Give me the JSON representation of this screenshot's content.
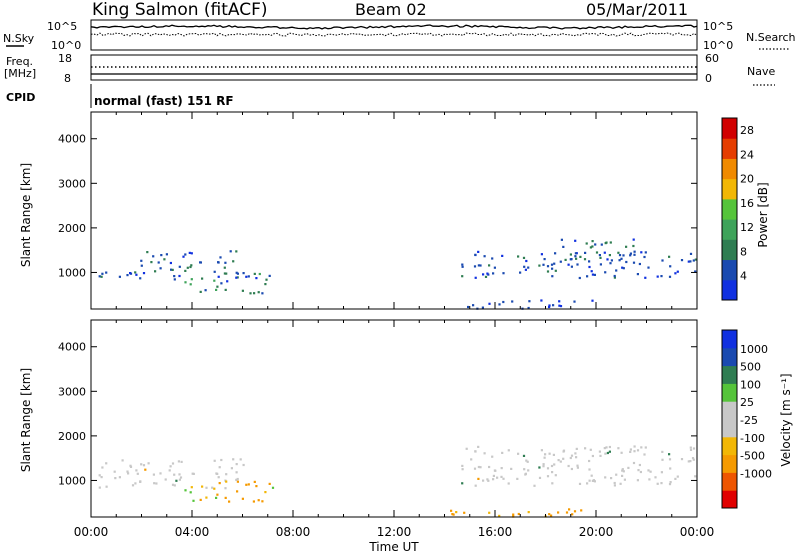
{
  "header": {
    "station": "King Salmon (fitACF)",
    "beam": "Beam 02",
    "date": "05/Mar/2011"
  },
  "top_panels": {
    "nsky_label": "N.Sky",
    "nsky_ticks": [
      "10^5",
      "10^0"
    ],
    "nsearch_label": "N.Search",
    "nsearch_ticks": [
      "10^5",
      "10^0"
    ],
    "freq_label": "Freq.",
    "freq_unit": "[MHz]",
    "freq_ticks": [
      "18",
      "8"
    ],
    "nave_label": "Nave",
    "nave_ticks": [
      "60",
      "0"
    ],
    "cpid_label": "CPID",
    "cpid_text": "normal (fast) 151 RF"
  },
  "colors": {
    "power_scale": [
      "#1030e0",
      "#1a4ab0",
      "#2f7d52",
      "#3ea35a",
      "#55c43a",
      "#f2b705",
      "#f08a00",
      "#e53d00",
      "#d10000"
    ],
    "velocity_scale": [
      "#e00000",
      "#ee5500",
      "#f59a00",
      "#f2b705",
      "#c8c8c8",
      "#c8c8c8",
      "#55c43a",
      "#2f7d52",
      "#1a4ab0",
      "#1030e0"
    ],
    "ground_scatter": "#c8c8c8"
  },
  "chart_data": [
    {
      "type": "heatmap",
      "name": "power",
      "xlabel": "",
      "ylabel": "Slant Range [km]",
      "x_ticks": [
        "00:00",
        "04:00",
        "08:00",
        "12:00",
        "16:00",
        "20:00",
        "00:00"
      ],
      "xlim": [
        0,
        24
      ],
      "ylim": [
        180,
        4600
      ],
      "y_ticks": [
        1000,
        2000,
        3000,
        4000
      ],
      "colorbar": {
        "label": "Power [dB]",
        "ticks": [
          4,
          8,
          12,
          16,
          20,
          24,
          28
        ],
        "range": [
          0,
          30
        ]
      },
      "regions": [
        {
          "t0": 0.3,
          "t1": 6.0,
          "r0": 850,
          "r1": 1050,
          "level": 6
        },
        {
          "t0": 1.5,
          "t1": 5.8,
          "r0": 1000,
          "r1": 1500,
          "level": 8
        },
        {
          "t0": 3.6,
          "t1": 7.2,
          "r0": 550,
          "r1": 1000,
          "level": 10
        },
        {
          "t0": 14.5,
          "t1": 24.0,
          "r0": 900,
          "r1": 1500,
          "level": 6
        },
        {
          "t0": 18.5,
          "t1": 21.5,
          "r0": 1200,
          "r1": 1800,
          "level": 8
        },
        {
          "t0": 14.0,
          "t1": 20.0,
          "r0": 200,
          "r1": 400,
          "level": 4
        }
      ]
    },
    {
      "type": "heatmap",
      "name": "velocity",
      "xlabel": "Time UT",
      "ylabel": "Slant Range [km]",
      "x_ticks": [
        "00:00",
        "04:00",
        "08:00",
        "12:00",
        "16:00",
        "20:00",
        "00:00"
      ],
      "xlim": [
        0,
        24
      ],
      "ylim": [
        180,
        4600
      ],
      "y_ticks": [
        1000,
        2000,
        3000,
        4000
      ],
      "colorbar": {
        "label": "Velocity [m s⁻¹]",
        "ticks": [
          "1000",
          "500",
          "100",
          "25",
          "-25",
          "-100",
          "-500",
          "-1000"
        ]
      },
      "regions": [
        {
          "t0": 0.3,
          "t1": 6.0,
          "r0": 850,
          "r1": 1500,
          "velocity": 0
        },
        {
          "t0": 3.6,
          "t1": 7.2,
          "r0": 550,
          "r1": 1000,
          "velocity": -100
        },
        {
          "t0": 14.5,
          "t1": 24.0,
          "r0": 900,
          "r1": 1800,
          "velocity": 0
        },
        {
          "t0": 14.0,
          "t1": 20.0,
          "r0": 200,
          "r1": 400,
          "velocity": -100
        }
      ]
    }
  ]
}
